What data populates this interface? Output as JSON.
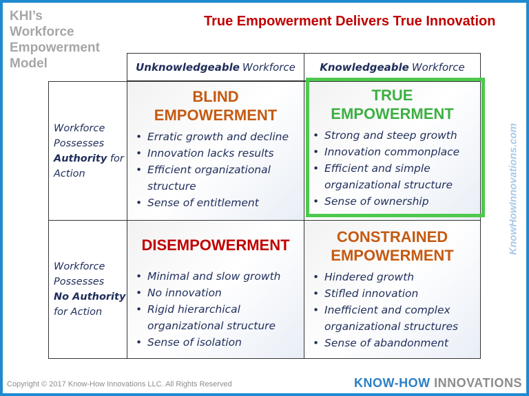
{
  "model_title": [
    "KHI’s",
    "Workforce",
    "Empowerment",
    "Model"
  ],
  "main_title": "True Empowerment Delivers True Innovation",
  "columns": [
    {
      "bold": "Unknowledgeable",
      "rest": "Workforce"
    },
    {
      "bold": "Knowledgeable",
      "rest": "Workforce"
    }
  ],
  "rows": [
    {
      "lines": [
        "Workforce",
        "Possesses"
      ],
      "bold": "Authority",
      "rest": " for",
      "last": "Action"
    },
    {
      "lines": [
        "Workforce",
        "Possesses"
      ],
      "bold": "No Authority",
      "rest": "",
      "last": "for Action"
    }
  ],
  "quadrants": [
    {
      "title": "BLIND EMPOWERMENT",
      "color": "#c55a11",
      "items": [
        "Erratic growth and decline",
        "Innovation lacks results",
        "Efficient organizational structure",
        "Sense of entitlement"
      ]
    },
    {
      "title": "TRUE EMPOWERMENT",
      "color": "#3cb043",
      "highlight": "#4dc94d",
      "items": [
        "Strong and steep growth",
        "Innovation commonplace",
        "Efficient and simple organizational structure",
        "Sense of ownership"
      ]
    },
    {
      "title": "DISEMPOWERMENT",
      "color": "#c00000",
      "items": [
        "Minimal and slow growth",
        "No innovation",
        "Rigid hierarchical organizational structure",
        "Sense of isolation"
      ]
    },
    {
      "title": "CONSTRAINED EMPOWERMENT",
      "color": "#c55a11",
      "items": [
        "Hindered growth",
        "Stifled innovation",
        "Inefficient and complex organizational structures",
        "Sense of abandonment"
      ]
    }
  ],
  "watermark": "KnowHowInnovations.com",
  "copyright": "Copyright © 2017 Know-How Innovations LLC. All Rights Reserved",
  "logo": {
    "part1": "KNOW-HOW",
    "part2": "INNOVATIONS"
  },
  "colors": {
    "frame": "#1f8ad0",
    "text": "#1f2d5a"
  }
}
